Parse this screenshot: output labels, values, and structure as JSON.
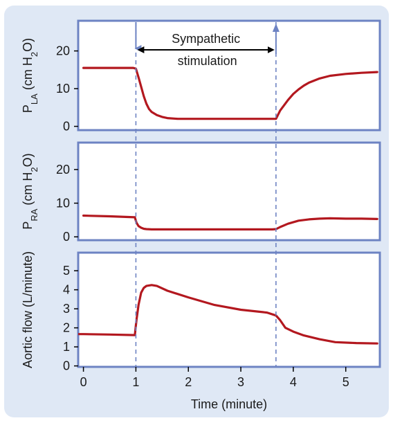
{
  "colors": {
    "background_outer": "#dfe8f5",
    "background_panel": "#ffffff",
    "panel_border": "#6d83c3",
    "curve": "#b3181f",
    "dashed_line": "#6d83c3",
    "arrow_marker": "#6d83c3"
  },
  "annotation": {
    "line1": "Sympathetic",
    "line2": "stimulation",
    "start_minute": 1.0,
    "end_minute": 3.67
  },
  "chart_data": {
    "type": "line",
    "x_axis": {
      "label": "Time (minute)",
      "range": [
        -0.1,
        5.65
      ],
      "ticks": [
        0,
        1,
        2,
        3,
        4,
        5
      ]
    },
    "panels": [
      {
        "id": "pla",
        "ylabel_main": "P",
        "ylabel_sub": "LA",
        "ylabel_unit_start": " (cm H",
        "ylabel_unit_sub": "2",
        "ylabel_unit_end": "O)",
        "ylim": [
          -1,
          28
        ],
        "yticks": [
          0,
          10,
          20
        ],
        "x": [
          0,
          0.5,
          0.95,
          1.0,
          1.05,
          1.1,
          1.15,
          1.2,
          1.25,
          1.3,
          1.4,
          1.5,
          1.6,
          1.8,
          2.0,
          2.5,
          3.0,
          3.5,
          3.67,
          3.75,
          3.9,
          4.0,
          4.1,
          4.2,
          4.3,
          4.5,
          4.7,
          5.0,
          5.3,
          5.6
        ],
        "y": [
          15.5,
          15.5,
          15.5,
          15.3,
          13.0,
          10.5,
          8.0,
          6.0,
          4.6,
          3.8,
          3.0,
          2.5,
          2.2,
          2.0,
          2.0,
          2.0,
          2.0,
          2.0,
          2.0,
          4.2,
          7.0,
          8.6,
          9.8,
          10.8,
          11.6,
          12.7,
          13.4,
          13.9,
          14.2,
          14.4
        ]
      },
      {
        "id": "pra",
        "ylabel_main": "P",
        "ylabel_sub": "RA",
        "ylabel_unit_start": " (cm H",
        "ylabel_unit_sub": "2",
        "ylabel_unit_end": "O)",
        "ylim": [
          -1,
          28
        ],
        "yticks": [
          0,
          10,
          20
        ],
        "x": [
          0,
          0.5,
          0.98,
          1.01,
          1.05,
          1.1,
          1.15,
          1.2,
          1.3,
          1.5,
          2.0,
          3.0,
          3.6,
          3.67,
          3.75,
          3.9,
          4.1,
          4.3,
          4.5,
          4.7,
          5.0,
          5.3,
          5.6
        ],
        "y": [
          6.3,
          6.1,
          5.8,
          4.2,
          3.2,
          2.7,
          2.4,
          2.3,
          2.2,
          2.2,
          2.2,
          2.2,
          2.2,
          2.3,
          2.9,
          3.9,
          4.8,
          5.2,
          5.4,
          5.5,
          5.4,
          5.4,
          5.3
        ]
      },
      {
        "id": "aortic",
        "ylabel_main": "Aortic flow (L/minute)",
        "ylabel_sub": "",
        "ylabel_unit_start": "",
        "ylabel_unit_sub": "",
        "ylabel_unit_end": "",
        "ylim": [
          -0.05,
          5.95
        ],
        "yticks": [
          0,
          1,
          2,
          3,
          4,
          5
        ],
        "x": [
          -0.1,
          0,
          0.5,
          0.98,
          1.01,
          1.05,
          1.1,
          1.15,
          1.2,
          1.3,
          1.4,
          1.6,
          2.0,
          2.5,
          3.0,
          3.5,
          3.67,
          3.75,
          3.85,
          4.0,
          4.2,
          4.5,
          4.8,
          5.2,
          5.6
        ],
        "y": [
          1.67,
          1.67,
          1.65,
          1.62,
          2.4,
          3.2,
          3.85,
          4.1,
          4.2,
          4.25,
          4.2,
          3.95,
          3.6,
          3.2,
          2.95,
          2.8,
          2.65,
          2.4,
          2.0,
          1.8,
          1.6,
          1.4,
          1.25,
          1.2,
          1.18
        ]
      }
    ]
  }
}
